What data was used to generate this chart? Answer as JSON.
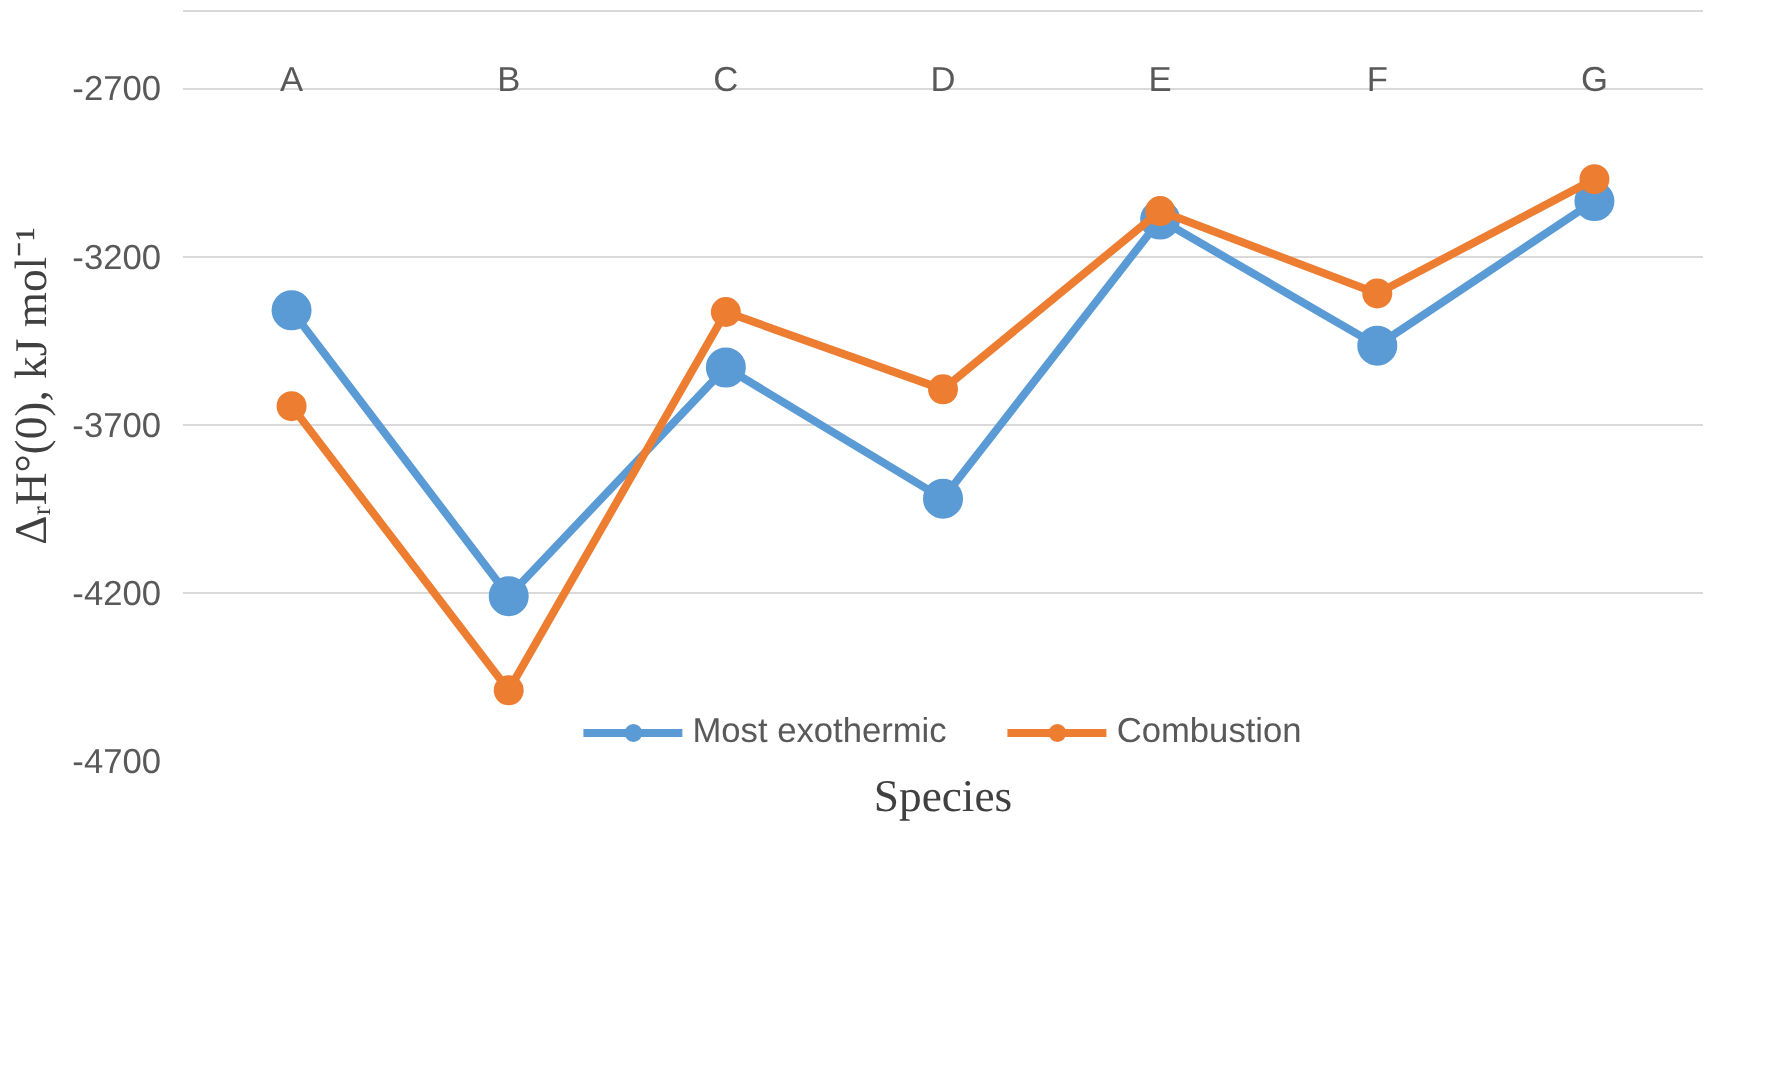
{
  "chart_data": {
    "type": "line",
    "xlabel": "Species",
    "ylabel": "ΔᵣH°(0), kJ mol⁻¹",
    "categories": [
      "A",
      "B",
      "C",
      "D",
      "E",
      "F",
      "G"
    ],
    "series": [
      {
        "name": "Most exothermic",
        "color": "#5b9bd5",
        "values": [
          -3360,
          -4210,
          -3530,
          -3920,
          -3090,
          -3465,
          -3035
        ]
      },
      {
        "name": "Combustion",
        "color": "#ed7d31",
        "values": [
          -3645,
          -4490,
          -3365,
          -3595,
          -3065,
          -3310,
          -2970
        ]
      }
    ],
    "ylim": [
      -4700,
      -2470
    ],
    "yticks": [
      -4700,
      -4200,
      -3700,
      -3200,
      -2700
    ],
    "grid": "y",
    "legend": "bottom",
    "marker": "circle",
    "line_style": "solid"
  }
}
